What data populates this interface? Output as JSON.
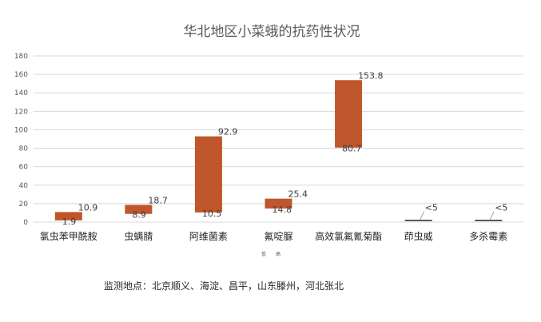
{
  "chart_data": {
    "type": "floating-bar",
    "title": "华北地区小菜蛾的抗药性状况",
    "ylim": [
      0,
      180
    ],
    "yticks": [
      0,
      20,
      40,
      60,
      80,
      100,
      120,
      140,
      160,
      180
    ],
    "grid": true,
    "bar_color": "#c0562b",
    "categories": [
      "氯虫苯甲酰胺",
      "虫螨腈",
      "阿维菌素",
      "氟啶脲",
      "高效氯氟氰菊酯",
      "茚虫威",
      "多杀霉素"
    ],
    "low": [
      1.9,
      8.9,
      10.5,
      14.8,
      80.7,
      null,
      null
    ],
    "high": [
      10.9,
      18.7,
      92.9,
      25.4,
      153.8,
      null,
      null
    ],
    "low_labels": [
      "1.9",
      "8.9",
      "10.5",
      "14.8",
      "80.7",
      "",
      ""
    ],
    "high_labels": [
      "10.9",
      "18.7",
      "92.9",
      "25.4",
      "153.8",
      "<5",
      "<5"
    ],
    "legend": {
      "low": "低",
      "high": "高"
    },
    "footer": "监测地点：北京顺义、海淀、昌平，山东滕州，河北张北"
  }
}
